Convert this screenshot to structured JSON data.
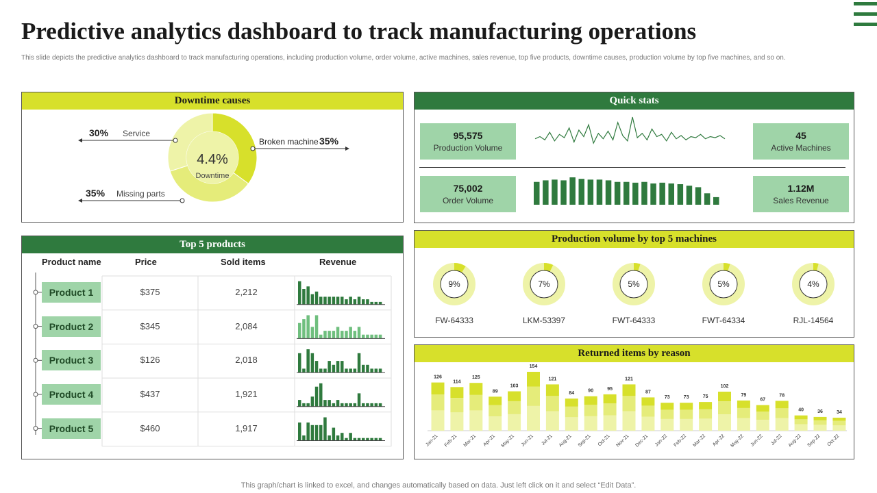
{
  "page": {
    "title": "Predictive analytics dashboard to track manufacturing operations",
    "subtitle": "This slide depicts the predictive analytics dashboard to track manufacturing operations, including production volume, order volume, active machines, sales revenue, top five products, downtime causes, production volume by top five machines, and so on.",
    "footer": "This graph/chart is linked to excel,  and changes automatically based on data. Just left click on it and select “Edit Data”."
  },
  "colors": {
    "green": "#2f7a3e",
    "yellow": "#d7e02b",
    "light_green": "#9fd4a8",
    "pale_yellow": "#eef3a8",
    "mid_yellow": "#e5ec7a"
  },
  "downtime": {
    "header": "Downtime causes",
    "center_value": "4.4%",
    "center_label": "Downtime",
    "causes": [
      {
        "pct": "30%",
        "label": "Service",
        "value": 30
      },
      {
        "pct": "35%",
        "label": "Broken machine",
        "value": 35
      },
      {
        "pct": "35%",
        "label": "Missing parts",
        "value": 35
      }
    ]
  },
  "quick_stats": {
    "header": "Quick stats",
    "production_volume": {
      "value": "95,575",
      "label": "Production Volume"
    },
    "order_volume": {
      "value": "75,002",
      "label": "Order Volume"
    },
    "active_machines": {
      "value": "45",
      "label": "Active Machines"
    },
    "sales_revenue": {
      "value": "1.12M",
      "label": "Sales Revenue"
    },
    "sparkline": [
      20,
      22,
      19,
      26,
      18,
      24,
      21,
      30,
      17,
      28,
      22,
      33,
      16,
      25,
      20,
      27,
      19,
      35,
      23,
      18,
      40,
      21,
      25,
      19,
      29,
      22,
      24,
      18,
      26,
      20,
      23,
      19,
      22,
      21,
      24,
      20,
      22,
      21,
      23,
      20
    ],
    "bars": [
      30,
      32,
      33,
      32,
      36,
      34,
      33,
      33,
      32,
      30,
      30,
      29,
      30,
      28,
      29,
      28,
      27,
      25,
      23,
      15,
      10
    ]
  },
  "top_products": {
    "header": "Top 5 products",
    "columns": [
      "Product name",
      "Price",
      "Sold items",
      "Revenue"
    ],
    "rows": [
      {
        "name": "Product 1",
        "price": "$375",
        "sold": "2,212",
        "spark": [
          9,
          6,
          7,
          4,
          5,
          3,
          3,
          3,
          3,
          3,
          3,
          2,
          3,
          2,
          3,
          2,
          2,
          1,
          1,
          1
        ]
      },
      {
        "name": "Product 2",
        "price": "$345",
        "sold": "2,084",
        "spark": [
          4,
          5,
          6,
          3,
          6,
          1,
          2,
          2,
          2,
          3,
          2,
          2,
          3,
          2,
          3,
          1,
          1,
          1,
          1,
          1
        ]
      },
      {
        "name": "Product 3",
        "price": "$126",
        "sold": "2,018",
        "spark": [
          5,
          1,
          6,
          5,
          3,
          1,
          1,
          3,
          2,
          3,
          3,
          1,
          1,
          1,
          5,
          2,
          2,
          1,
          1,
          1
        ]
      },
      {
        "name": "Product 4",
        "price": "$437",
        "sold": "1,921",
        "spark": [
          2,
          1,
          1,
          3,
          6,
          7,
          2,
          2,
          1,
          2,
          1,
          1,
          1,
          1,
          4,
          1,
          1,
          1,
          1,
          1
        ]
      },
      {
        "name": "Product 5",
        "price": "$460",
        "sold": "1,917",
        "spark": [
          7,
          2,
          7,
          6,
          6,
          6,
          9,
          2,
          5,
          2,
          3,
          1,
          3,
          1,
          1,
          1,
          1,
          1,
          1,
          1
        ]
      }
    ]
  },
  "machines": {
    "header": "Production  volume by top 5 machines",
    "items": [
      {
        "name": "FW-64333",
        "pct": "9%",
        "value": 9
      },
      {
        "name": "LKM-53397",
        "pct": "7%",
        "value": 7
      },
      {
        "name": "FWT-64333",
        "pct": "5%",
        "value": 5
      },
      {
        "name": "FWT-64334",
        "pct": "5%",
        "value": 5
      },
      {
        "name": "RJL-14564",
        "pct": "4%",
        "value": 4
      }
    ]
  },
  "chart_data": {
    "type": "bar",
    "title": "Returned items by reason",
    "categories": [
      "Jan-21",
      "Feb-21",
      "Mar-21",
      "Apr-21",
      "May-21",
      "Jun-21",
      "Jul-21",
      "Aug-21",
      "Sep-21",
      "Oct-21",
      "Nov-21",
      "Dec-21",
      "Jan-22",
      "Feb-22",
      "Mar-22",
      "Apr-22",
      "May-22",
      "Jun-22",
      "Jul-22",
      "Aug-22",
      "Sep-22",
      "Oct-22"
    ],
    "values": [
      126,
      114,
      125,
      89,
      103,
      154,
      121,
      84,
      90,
      95,
      121,
      87,
      73,
      73,
      75,
      102,
      79,
      67,
      78,
      40,
      36,
      34
    ],
    "stack_fractions": [
      0.42,
      0.33,
      0.25
    ],
    "grid": false
  }
}
